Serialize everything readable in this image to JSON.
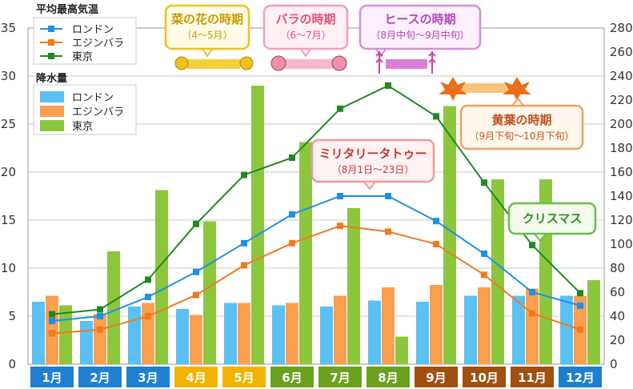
{
  "chart_data": {
    "type": "bar+line",
    "categories": [
      "1月",
      "2月",
      "3月",
      "4月",
      "5月",
      "6月",
      "7月",
      "8月",
      "9月",
      "10月",
      "11月",
      "12月"
    ],
    "month_colors": [
      "#1f7fd0",
      "#1f7fd0",
      "#1f7fd0",
      "#f0b400",
      "#f0b400",
      "#6aa11e",
      "#6aa11e",
      "#6aa11e",
      "#a0500f",
      "#a0500f",
      "#a0500f",
      "#1f7fd0"
    ],
    "temperature": {
      "legend_title": "平均最高気温",
      "axis": "left",
      "ylim": [
        0,
        35
      ],
      "ticks": [
        0,
        5,
        10,
        15,
        20,
        25,
        30,
        35
      ],
      "series": [
        {
          "name": "ロンドン",
          "color": "#1e90e8",
          "values": [
            4.5,
            5.0,
            7.0,
            9.6,
            12.6,
            15.6,
            17.5,
            17.5,
            14.9,
            11.5,
            7.5,
            6.1
          ]
        },
        {
          "name": "エジンバラ",
          "color": "#f07a1e",
          "values": [
            3.2,
            3.6,
            5.0,
            7.2,
            10.3,
            12.6,
            14.4,
            13.8,
            12.5,
            9.3,
            5.3,
            3.6
          ]
        },
        {
          "name": "東京",
          "color": "#1f8a1f",
          "values": [
            5.2,
            5.7,
            8.8,
            14.6,
            19.7,
            21.5,
            26.6,
            29.0,
            25.8,
            18.9,
            12.4,
            7.4
          ]
        }
      ]
    },
    "precipitation": {
      "legend_title": "降水量",
      "axis": "right",
      "ylim": [
        0,
        280
      ],
      "ticks": [
        0,
        20,
        40,
        60,
        80,
        100,
        120,
        140,
        160,
        180,
        200,
        220,
        240,
        260,
        280
      ],
      "series": [
        {
          "name": "ロンドン",
          "color": "#5bc0f2",
          "values": [
            52,
            36,
            48,
            46,
            51,
            49,
            48,
            53,
            52,
            57,
            57,
            57
          ]
        },
        {
          "name": "エジンバラ",
          "color": "#f8a050",
          "values": [
            57,
            42,
            51,
            41,
            51,
            51,
            57,
            64,
            66,
            64,
            63,
            57
          ]
        },
        {
          "name": "東京",
          "color": "#8cc63f",
          "values": [
            49,
            94,
            145,
            119,
            232,
            185,
            130,
            23,
            215,
            154,
            154,
            70
          ]
        }
      ]
    },
    "callouts": {
      "nanohana": {
        "title": "菜の花の時期",
        "sub": "（4～5月）",
        "color": "#c99a00",
        "border": "#f0c020"
      },
      "bara": {
        "title": "バラの時期",
        "sub": "（6～7月）",
        "color": "#e0507a",
        "border": "#f3a0b8"
      },
      "heath": {
        "title": "ヒースの時期",
        "sub": "（8月中旬～9月中旬）",
        "color": "#b04ab8",
        "border": "#d38fd8"
      },
      "tattoo": {
        "title": "ミリタリータトゥー",
        "sub": "（8月1日～23日）",
        "color": "#c03838",
        "border": "#ee9a9a"
      },
      "koyo": {
        "title": "黄葉の時期",
        "sub": "（9月下旬～10月下旬）",
        "color": "#c0501a",
        "border": "#f0a060"
      },
      "christmas": {
        "title": "クリスマス",
        "color": "#3a8a28",
        "border": "#6bbd45"
      }
    }
  }
}
